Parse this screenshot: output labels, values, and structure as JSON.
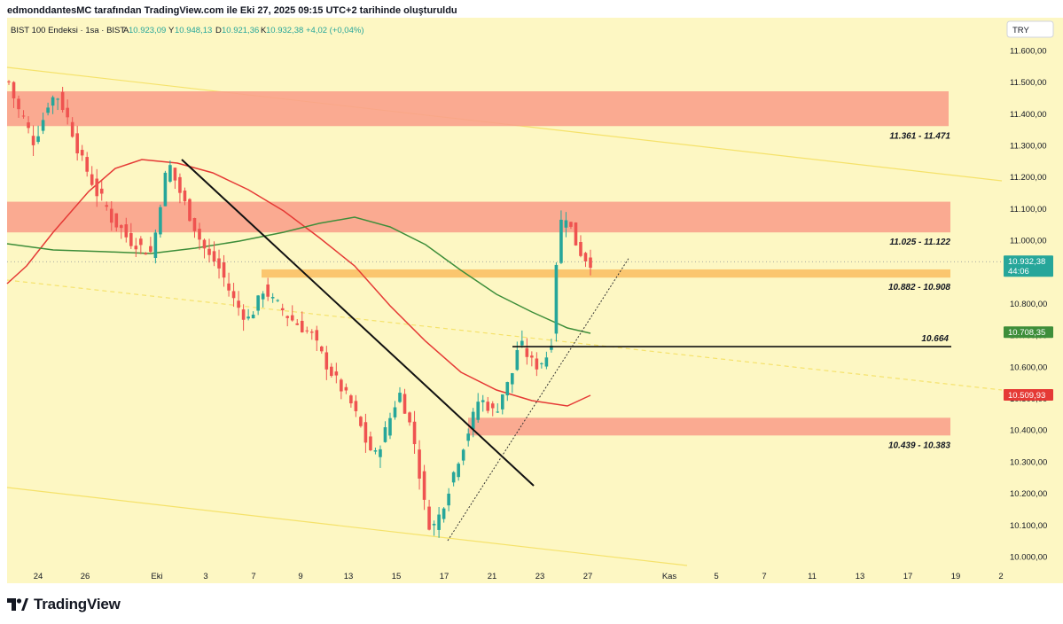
{
  "credit": "edmonddantesMC tarafından TradingView.com ile Eki 27, 2025 09:15 UTC+2 tarihinde oluşturuldu",
  "colors": {
    "bg": "#fdf7c3",
    "up": "#26a69a",
    "down": "#ef5350",
    "zone": "#f9a18c",
    "zone_orange": "#fbc36a",
    "ma_fast": "#e53935",
    "ma_slow": "#3e8e3a",
    "trend": "#111111",
    "channel": "#f5e26b"
  },
  "chart_data": {
    "type": "candlestick",
    "title": "BIST 100 Endeksi · 1sa · BIST",
    "ohlc": {
      "open_label": "A",
      "open": "10.923,09",
      "high_label": "Y",
      "high": "10.948,13",
      "low_label": "D",
      "low": "10.921,36",
      "close_label": "K",
      "close": "10.932,38",
      "change": "+4,02 (+0,04%)"
    },
    "currency": "TRY",
    "ylim": [
      9950,
      11700
    ],
    "y_ticks": [
      "11.600,00",
      "11.500,00",
      "11.400,00",
      "11.300,00",
      "11.200,00",
      "11.100,00",
      "11.000,00",
      "10.900,00",
      "10.800,00",
      "10.700,00",
      "10.600,00",
      "10.500,00",
      "10.400,00",
      "10.300,00",
      "10.200,00",
      "10.100,00",
      "10.000,00"
    ],
    "x_ticks": [
      "24",
      "26",
      "Eki",
      "3",
      "7",
      "9",
      "13",
      "15",
      "17",
      "21",
      "23",
      "27",
      "Kas",
      "5",
      "7",
      "11",
      "13",
      "17",
      "19",
      "2"
    ],
    "zones": [
      {
        "label": "11.361 - 11.471",
        "low": 11361,
        "high": 11471,
        "color": "zone"
      },
      {
        "label": "11.025 - 11.122",
        "low": 11025,
        "high": 11122,
        "color": "zone"
      },
      {
        "label": "10.882 - 10.908",
        "low": 10882,
        "high": 10908,
        "color": "zone_orange"
      },
      {
        "label": "10.439 - 10.383",
        "low": 10383,
        "high": 10439,
        "color": "zone"
      }
    ],
    "hline": {
      "label": "10.664",
      "value": 10664
    },
    "price_labels": [
      {
        "value": "10.932,38",
        "countdown": "44:06",
        "y": 10932.38,
        "color": "#26a69a"
      },
      {
        "value": "10.708,35",
        "y": 10708.35,
        "color": "#3e8e3a"
      },
      {
        "value": "10.509,93",
        "y": 10509.93,
        "color": "#e53935"
      }
    ],
    "series": [
      {
        "name": "price",
        "values": [
          11500,
          11420,
          11380,
          11310,
          11360,
          11440,
          11460,
          11410,
          11340,
          11260,
          11210,
          11150,
          11120,
          11060,
          11040,
          11000,
          10990,
          10970,
          10960,
          11120,
          11250,
          11180,
          11120,
          11060,
          11000,
          10950,
          10930,
          10880,
          10820,
          10780,
          10750,
          10790,
          10850,
          10810,
          10790,
          10760,
          10740,
          10720,
          10700,
          10650,
          10600,
          10560,
          10520,
          10480,
          10420,
          10350,
          10320,
          10380,
          10450,
          10520,
          10450,
          10350,
          10180,
          10080,
          10130,
          10200,
          10280,
          10350,
          10420,
          10500,
          10480,
          10450,
          10520,
          10560,
          10680,
          10640,
          10600,
          10620,
          10650,
          11050,
          11080,
          11000,
          10950,
          10932
        ]
      }
    ]
  },
  "brand": "TradingView"
}
